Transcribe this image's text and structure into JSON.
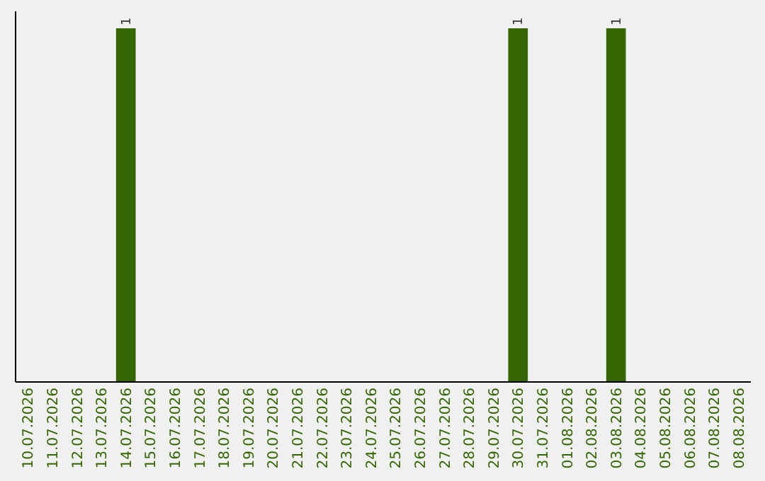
{
  "chart_data": {
    "type": "bar",
    "categories": [
      "10.07.2026",
      "11.07.2026",
      "12.07.2026",
      "13.07.2026",
      "14.07.2026",
      "15.07.2026",
      "16.07.2026",
      "17.07.2026",
      "18.07.2026",
      "19.07.2026",
      "20.07.2026",
      "21.07.2026",
      "22.07.2026",
      "23.07.2026",
      "24.07.2026",
      "25.07.2026",
      "26.07.2026",
      "27.07.2026",
      "28.07.2026",
      "29.07.2026",
      "30.07.2026",
      "31.07.2026",
      "01.08.2026",
      "02.08.2026",
      "03.08.2026",
      "04.08.2026",
      "05.08.2026",
      "06.08.2026",
      "07.08.2026",
      "08.08.2026"
    ],
    "values": [
      0,
      0,
      0,
      0,
      1,
      0,
      0,
      0,
      0,
      0,
      0,
      0,
      0,
      0,
      0,
      0,
      0,
      0,
      0,
      0,
      1,
      0,
      0,
      0,
      1,
      0,
      0,
      0,
      0,
      0
    ],
    "value_labels": [
      null,
      null,
      null,
      null,
      "1",
      null,
      null,
      null,
      null,
      null,
      null,
      null,
      null,
      null,
      null,
      null,
      null,
      null,
      null,
      null,
      "1",
      null,
      null,
      null,
      "1",
      null,
      null,
      null,
      null,
      null
    ],
    "color": "#336600",
    "tick_labels": "x"
  }
}
